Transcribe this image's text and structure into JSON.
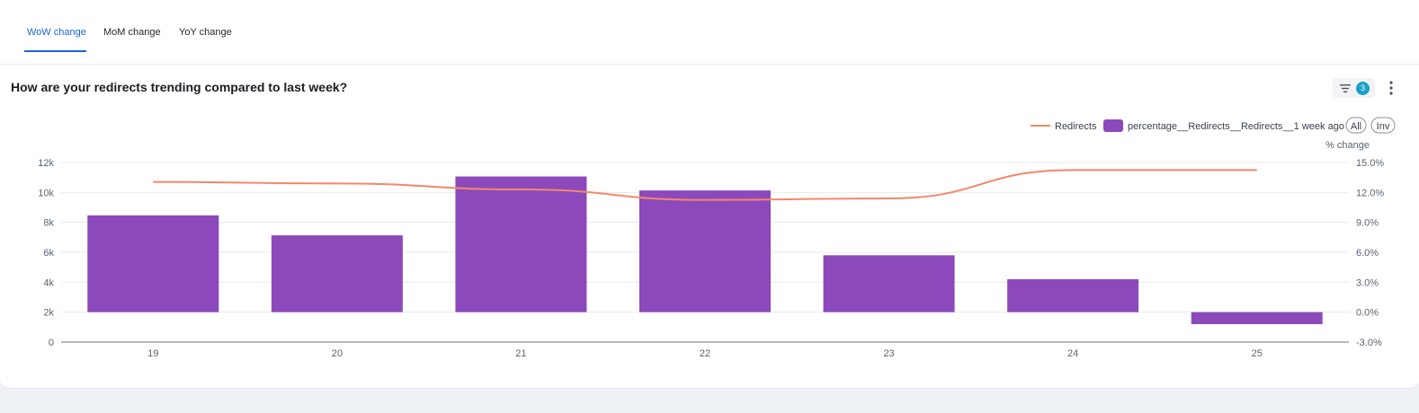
{
  "tabs": [
    {
      "label": "WoW change",
      "active": true
    },
    {
      "label": "MoM change",
      "active": false
    },
    {
      "label": "YoY change",
      "active": false
    }
  ],
  "header": {
    "title": "How are your redirects trending compared to last week?",
    "filter_count": "3",
    "filter_icon": "filter-icon",
    "more_icon": "more-vertical-icon"
  },
  "legend": {
    "all_label": "All",
    "inv_label": "Inv"
  },
  "colors": {
    "accent": "#1a66d6",
    "bar": "#8c49bb",
    "line": "#f5876a",
    "badge": "#1aa0c4"
  },
  "chart_data": {
    "type": "bar",
    "categories": [
      "19",
      "20",
      "21",
      "22",
      "23",
      "24",
      "25"
    ],
    "series": [
      {
        "name": "percentage__Redirects__Redirects__1 week ago",
        "type": "bar",
        "axis": "right",
        "values": [
          9.7,
          7.7,
          13.6,
          12.2,
          5.7,
          3.3,
          -1.2
        ]
      },
      {
        "name": "Redirects",
        "type": "line",
        "axis": "left",
        "values": [
          10700,
          10600,
          10200,
          9500,
          9600,
          11500,
          11500
        ]
      }
    ],
    "y_left": {
      "ticks": [
        "0",
        "2k",
        "4k",
        "6k",
        "8k",
        "10k",
        "12k"
      ],
      "range": [
        0,
        12000
      ]
    },
    "y_right": {
      "label": "% change",
      "ticks": [
        "-3.0%",
        "0.0%",
        "3.0%",
        "6.0%",
        "9.0%",
        "12.0%",
        "15.0%"
      ],
      "range": [
        -3,
        15
      ]
    },
    "grid": true,
    "legend_position": "top-right"
  }
}
